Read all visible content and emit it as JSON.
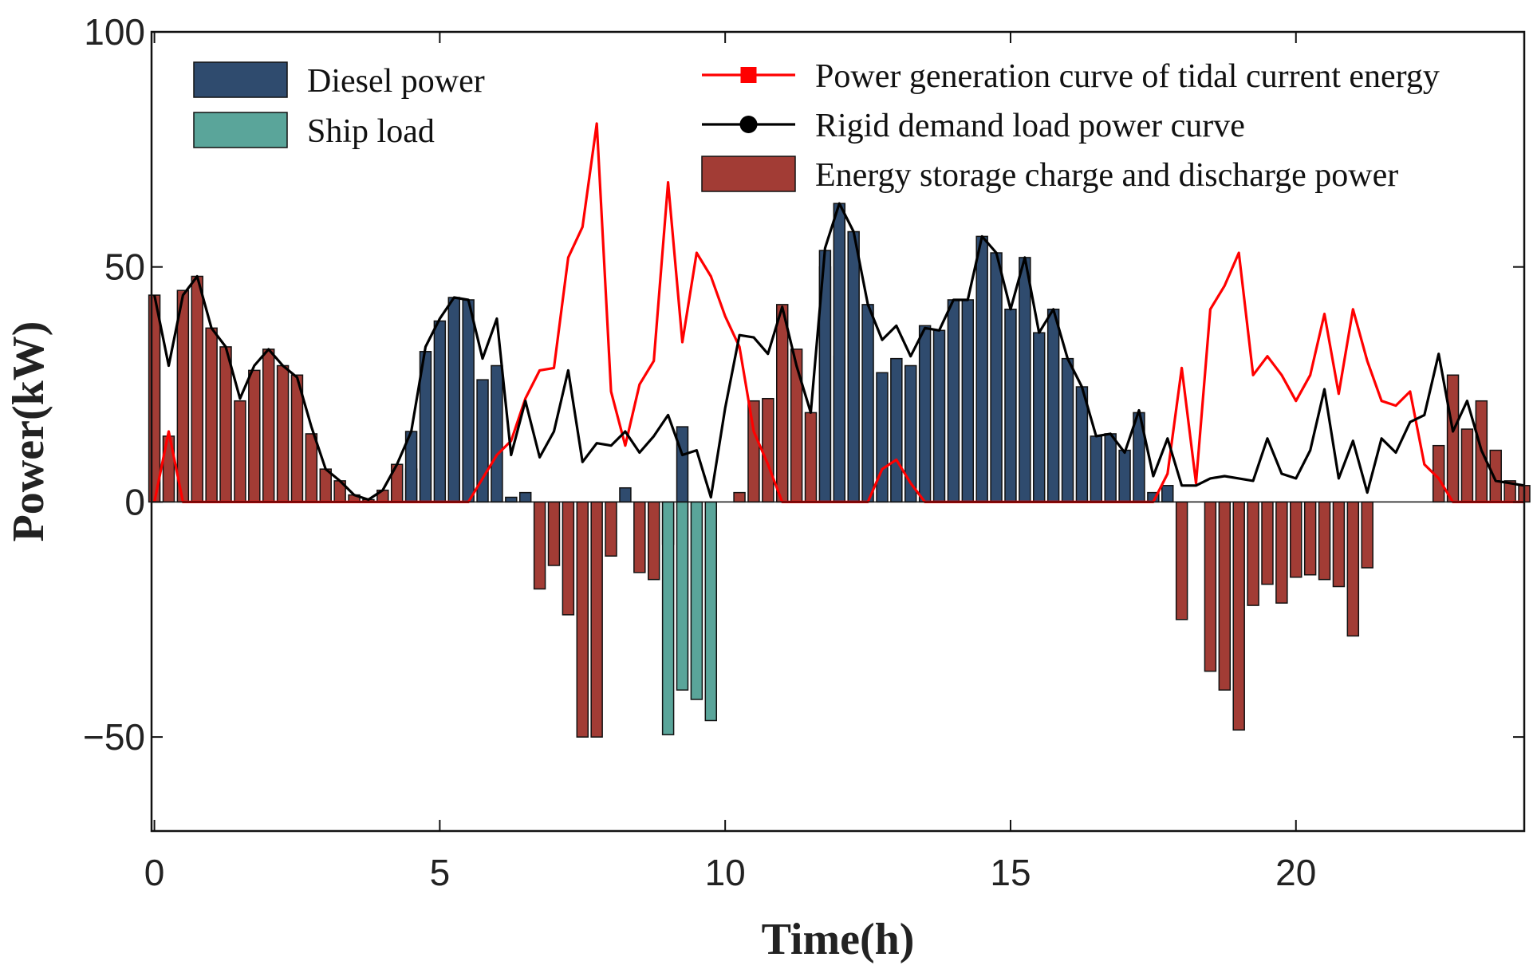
{
  "chart_data": {
    "type": "bar",
    "xlabel": "Time(h)",
    "ylabel": "Power(kW)",
    "xlim": [
      -0.05,
      24
    ],
    "ylim": [
      -70,
      100
    ],
    "xticks": [
      0,
      5,
      10,
      15,
      20
    ],
    "yticks": [
      -50,
      0,
      50,
      100
    ],
    "xtick_labels": [
      "0",
      "5",
      "10",
      "15",
      "20"
    ],
    "ytick_labels": [
      "−50",
      "0",
      "50",
      "100"
    ],
    "grid": false,
    "colors": {
      "diesel": "#2f4b6e",
      "ship": "#5aa59a",
      "storage": "#a23c35",
      "tidal": "#ff0000",
      "rigid": "#000000",
      "bar_edge": "#111111"
    },
    "legend": {
      "left": [
        {
          "key": "diesel",
          "label": "Diesel power",
          "kind": "bar"
        },
        {
          "key": "ship",
          "label": "Ship load",
          "kind": "bar"
        }
      ],
      "right": [
        {
          "key": "tidal",
          "label": "Power generation curve of tidal current energy",
          "kind": "line-square"
        },
        {
          "key": "rigid",
          "label": "Rigid demand load power curve",
          "kind": "line-circle"
        },
        {
          "key": "storage",
          "label": "Energy storage charge and discharge power",
          "kind": "bar"
        }
      ]
    },
    "bar_time_step": 0.25,
    "storage_bars": [
      [
        0,
        44
      ],
      [
        0.25,
        14
      ],
      [
        0.5,
        45
      ],
      [
        0.75,
        48
      ],
      [
        1.0,
        37
      ],
      [
        1.25,
        33
      ],
      [
        1.5,
        21.5
      ],
      [
        1.75,
        28
      ],
      [
        2.0,
        32.5
      ],
      [
        2.25,
        29
      ],
      [
        2.5,
        27
      ],
      [
        2.75,
        14.5
      ],
      [
        3.0,
        7
      ],
      [
        3.25,
        4.5
      ],
      [
        3.5,
        1.5
      ],
      [
        3.75,
        0.5
      ],
      [
        4.0,
        2.5
      ],
      [
        4.25,
        8
      ],
      [
        4.5,
        7
      ],
      [
        6.75,
        -18.5
      ],
      [
        7.0,
        -13.5
      ],
      [
        7.25,
        -24
      ],
      [
        7.5,
        -50
      ],
      [
        7.75,
        -50
      ],
      [
        8.0,
        -11.5
      ],
      [
        8.5,
        -15
      ],
      [
        8.75,
        -16.5
      ],
      [
        9.0,
        -9
      ],
      [
        10.25,
        2
      ],
      [
        10.5,
        21.5
      ],
      [
        10.75,
        22
      ],
      [
        11.0,
        42
      ],
      [
        11.25,
        32.5
      ],
      [
        11.5,
        19
      ],
      [
        11.75,
        50
      ],
      [
        12.0,
        31
      ],
      [
        18.0,
        -25
      ],
      [
        18.5,
        -36
      ],
      [
        18.75,
        -40
      ],
      [
        19.0,
        -48.5
      ],
      [
        19.25,
        -22
      ],
      [
        19.5,
        -17.5
      ],
      [
        19.75,
        -21.5
      ],
      [
        20.0,
        -16
      ],
      [
        20.25,
        -15.5
      ],
      [
        20.5,
        -16.5
      ],
      [
        20.75,
        -18
      ],
      [
        21.0,
        -28.5
      ],
      [
        21.25,
        -14
      ],
      [
        22.5,
        12
      ],
      [
        22.75,
        27
      ],
      [
        23.0,
        15.5
      ],
      [
        23.25,
        21.5
      ],
      [
        23.5,
        11
      ],
      [
        23.75,
        4.5
      ],
      [
        24.0,
        3.5
      ]
    ],
    "diesel_bars": [
      [
        4.5,
        15
      ],
      [
        4.75,
        32
      ],
      [
        5.0,
        38.5
      ],
      [
        5.25,
        43.5
      ],
      [
        5.5,
        43
      ],
      [
        5.75,
        26
      ],
      [
        6.0,
        29
      ],
      [
        6.25,
        1
      ],
      [
        6.5,
        2
      ],
      [
        8.25,
        3
      ],
      [
        9.25,
        16
      ],
      [
        11.75,
        53.5
      ],
      [
        12.0,
        63.5
      ],
      [
        12.25,
        57.5
      ],
      [
        12.5,
        42
      ],
      [
        12.75,
        27.5
      ],
      [
        13.0,
        30.5
      ],
      [
        13.25,
        29
      ],
      [
        13.5,
        37.5
      ],
      [
        13.75,
        36.5
      ],
      [
        14.0,
        43
      ],
      [
        14.25,
        43
      ],
      [
        14.5,
        56.5
      ],
      [
        14.75,
        53
      ],
      [
        15.0,
        41
      ],
      [
        15.25,
        52
      ],
      [
        15.5,
        36
      ],
      [
        15.75,
        41
      ],
      [
        16.0,
        30.5
      ],
      [
        16.25,
        24.5
      ],
      [
        16.5,
        14
      ],
      [
        16.75,
        14.5
      ],
      [
        17.0,
        11
      ],
      [
        17.25,
        19
      ],
      [
        17.5,
        2
      ],
      [
        17.75,
        3.5
      ]
    ],
    "ship_bars": [
      [
        9.0,
        -49.5
      ],
      [
        9.25,
        -40
      ],
      [
        9.5,
        -42
      ],
      [
        9.75,
        -46.5
      ]
    ],
    "tidal_curve": {
      "x": [
        0,
        0.25,
        0.5,
        0.75,
        1.0,
        1.25,
        1.5,
        1.75,
        2.0,
        2.25,
        2.5,
        2.75,
        3.0,
        3.25,
        3.5,
        3.75,
        4.0,
        4.25,
        4.5,
        4.75,
        5.0,
        5.25,
        5.5,
        5.75,
        6.0,
        6.25,
        6.5,
        6.75,
        7.0,
        7.25,
        7.5,
        7.75,
        8.0,
        8.25,
        8.5,
        8.75,
        9.0,
        9.25,
        9.5,
        9.75,
        10.0,
        10.25,
        10.5,
        10.75,
        11.0,
        11.25,
        11.5,
        11.75,
        12.0,
        12.25,
        12.5,
        12.75,
        13.0,
        13.25,
        13.5,
        13.75,
        14.0,
        14.25,
        14.5,
        14.75,
        15.0,
        15.25,
        15.5,
        15.75,
        16.0,
        16.25,
        16.5,
        16.75,
        17.0,
        17.25,
        17.5,
        17.75,
        18.0,
        18.25,
        18.5,
        18.75,
        19.0,
        19.25,
        19.5,
        19.75,
        20.0,
        20.25,
        20.5,
        20.75,
        21.0,
        21.25,
        21.5,
        21.75,
        22.0,
        22.25,
        22.5,
        22.75,
        23.0,
        23.25,
        23.5,
        23.75,
        24.0
      ],
      "y": [
        0,
        15,
        0,
        0,
        0,
        0,
        0,
        0,
        0,
        0,
        0,
        0,
        0,
        0,
        0,
        0,
        0,
        0,
        0,
        0,
        0,
        0,
        0,
        5,
        10,
        13,
        22,
        28,
        28.5,
        52,
        58.5,
        80.5,
        23.5,
        12,
        25,
        30,
        68,
        34,
        53,
        48,
        39.5,
        33,
        15,
        8,
        0,
        0,
        0,
        0,
        0,
        0,
        0,
        7,
        9,
        4,
        0,
        0,
        0,
        0,
        0,
        0,
        0,
        0,
        0,
        0,
        0,
        0,
        0,
        0,
        0,
        0,
        0,
        6,
        28.5,
        4,
        41,
        46,
        53,
        27,
        31,
        27,
        21.5,
        27,
        40,
        23,
        41,
        30,
        21.5,
        20.5,
        23.5,
        8,
        5,
        0,
        0,
        0,
        0,
        0,
        0
      ]
    },
    "rigid_curve": {
      "x": [
        0,
        0.25,
        0.5,
        0.75,
        1.0,
        1.25,
        1.5,
        1.75,
        2.0,
        2.25,
        2.5,
        2.75,
        3.0,
        3.25,
        3.5,
        3.75,
        4.0,
        4.25,
        4.5,
        4.75,
        5.0,
        5.25,
        5.5,
        5.75,
        6.0,
        6.25,
        6.5,
        6.75,
        7.0,
        7.25,
        7.5,
        7.75,
        8.0,
        8.25,
        8.5,
        8.75,
        9.0,
        9.25,
        9.5,
        9.75,
        10.0,
        10.25,
        10.5,
        10.75,
        11.0,
        11.25,
        11.5,
        11.75,
        12.0,
        12.25,
        12.5,
        12.75,
        13.0,
        13.25,
        13.5,
        13.75,
        14.0,
        14.25,
        14.5,
        14.75,
        15.0,
        15.25,
        15.5,
        15.75,
        16.0,
        16.25,
        16.5,
        16.75,
        17.0,
        17.25,
        17.5,
        17.75,
        18.0,
        18.25,
        18.5,
        18.75,
        19.0,
        19.25,
        19.5,
        19.75,
        20.0,
        20.25,
        20.5,
        20.75,
        21.0,
        21.25,
        21.5,
        21.75,
        22.0,
        22.25,
        22.5,
        22.75,
        23.0,
        23.25,
        23.5,
        23.75,
        24.0
      ],
      "y": [
        44,
        29,
        44,
        48,
        37,
        33,
        22,
        29,
        32.5,
        29,
        26.5,
        16,
        7,
        4.5,
        1.5,
        0.5,
        2.5,
        8,
        15,
        33,
        39,
        43.5,
        43,
        30.5,
        39,
        10,
        21.5,
        9.5,
        15,
        28,
        8.5,
        12.5,
        12,
        15,
        10.5,
        14,
        18.5,
        10,
        11,
        1,
        20,
        35.5,
        35,
        31.5,
        41.5,
        29,
        19,
        54,
        63.5,
        57.5,
        42,
        34.5,
        37.5,
        31,
        37,
        36.5,
        43,
        43,
        56.5,
        53,
        41,
        52,
        36,
        41,
        30.5,
        24.5,
        14,
        14.5,
        10.5,
        19.5,
        5.5,
        13.5,
        3.5,
        3.5,
        5,
        5.5,
        5,
        4.5,
        13.5,
        6,
        5,
        11,
        24,
        5,
        13,
        2,
        13.5,
        10.5,
        17,
        18.5,
        31.5,
        15,
        21.5,
        11,
        4.5,
        4,
        3.5
      ]
    }
  }
}
